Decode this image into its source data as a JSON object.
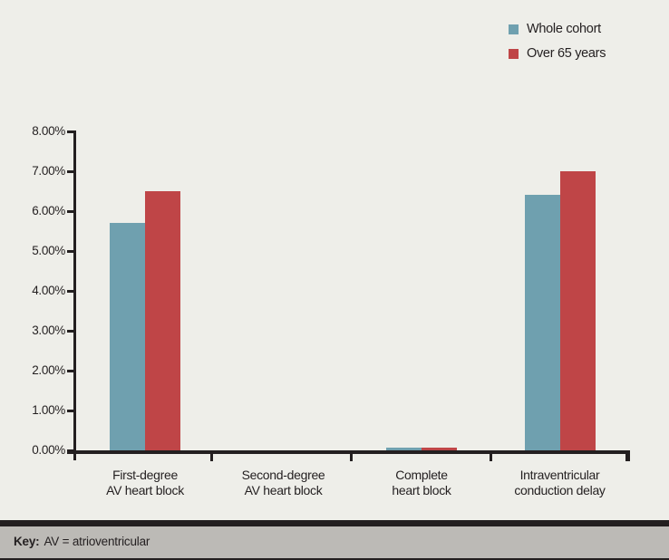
{
  "figure": {
    "background": "#eeeee9",
    "ink": "#231f20",
    "footer": {
      "key_label": "Key:",
      "key_text": "AV = atrioventricular",
      "background": "#bcbab6"
    }
  },
  "chart_data": {
    "type": "bar",
    "title": "",
    "xlabel": "",
    "ylabel": "",
    "categories": [
      [
        "First-degree",
        "AV heart block"
      ],
      [
        "Second-degree",
        "AV heart block"
      ],
      [
        "Complete",
        "heart block"
      ],
      [
        "Intraventricular",
        "conduction delay"
      ]
    ],
    "series": [
      {
        "name": "Whole cohort",
        "color": "#6fa0af",
        "values": [
          5.7,
          0,
          0.06,
          6.4
        ]
      },
      {
        "name": "Over 65 years",
        "color": "#bf4547",
        "values": [
          6.5,
          0,
          0.06,
          7.0
        ]
      }
    ],
    "ylim": [
      0,
      8
    ],
    "ytick_step": 1,
    "ytick_labels": [
      "0.00%",
      "1.00%",
      "2.00%",
      "3.00%",
      "4.00%",
      "5.00%",
      "6.00%",
      "7.00%",
      "8.00%"
    ],
    "grid": false,
    "legend_position": "top-right"
  }
}
